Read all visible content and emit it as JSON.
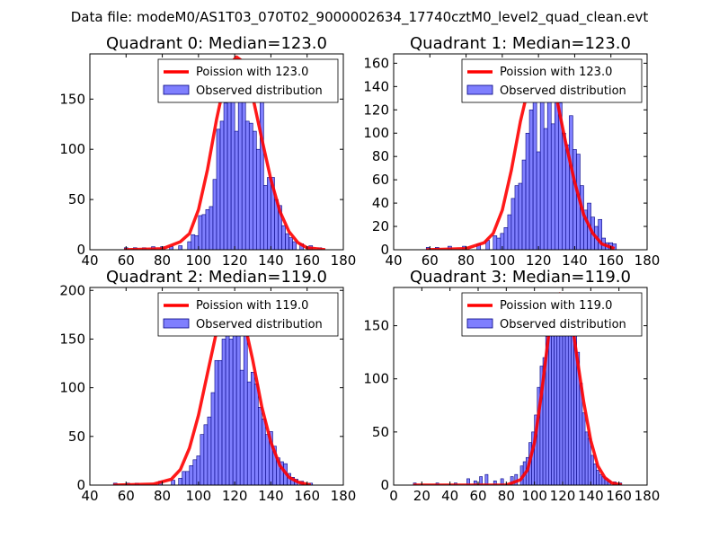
{
  "suptitle": "Data file: modeM0/AS1T03_070T02_9000002634_17740cztM0_level2_quad_clean.evt",
  "colors": {
    "bar_fill": "#7f7ffe",
    "bar_edge": "#000080",
    "curve": "#ff0000",
    "axis": "#000000"
  },
  "chart_data": [
    {
      "type": "bar",
      "title": "Quadrant 0: Median=123.0",
      "median": 123.0,
      "xlim": [
        40,
        180
      ],
      "ylim": [
        0,
        195
      ],
      "xticks": [
        40,
        60,
        80,
        100,
        120,
        140,
        160,
        180
      ],
      "yticks": [
        0,
        50,
        100,
        150
      ],
      "legend": {
        "position": "top-right",
        "curve_label": "Poission with 123.0",
        "bar_label": "Observed distribution"
      },
      "bins": [
        [
          59,
          2
        ],
        [
          64,
          2
        ],
        [
          69,
          2
        ],
        [
          74,
          3
        ],
        [
          79,
          3
        ],
        [
          84,
          3
        ],
        [
          89,
          4
        ],
        [
          94,
          8
        ],
        [
          96,
          15
        ],
        [
          98,
          14
        ],
        [
          100,
          34
        ],
        [
          102,
          35
        ],
        [
          104,
          40
        ],
        [
          106,
          43
        ],
        [
          108,
          70
        ],
        [
          110,
          120
        ],
        [
          112,
          128
        ],
        [
          114,
          146
        ],
        [
          116,
          160
        ],
        [
          118,
          158
        ],
        [
          120,
          118
        ],
        [
          122,
          166
        ],
        [
          124,
          186
        ],
        [
          126,
          128
        ],
        [
          128,
          126
        ],
        [
          130,
          118
        ],
        [
          132,
          100
        ],
        [
          134,
          158
        ],
        [
          136,
          64
        ],
        [
          138,
          72
        ],
        [
          140,
          72
        ],
        [
          142,
          50
        ],
        [
          144,
          44
        ],
        [
          146,
          24
        ],
        [
          148,
          16
        ],
        [
          150,
          12
        ],
        [
          152,
          8
        ],
        [
          156,
          6
        ],
        [
          161,
          4
        ],
        [
          166,
          2
        ]
      ],
      "bin_width": 2,
      "curve": [
        [
          59,
          0
        ],
        [
          80,
          1
        ],
        [
          90,
          8
        ],
        [
          95,
          16
        ],
        [
          100,
          40
        ],
        [
          105,
          80
        ],
        [
          110,
          130
        ],
        [
          115,
          172
        ],
        [
          118,
          186
        ],
        [
          121,
          192
        ],
        [
          124,
          188
        ],
        [
          127,
          176
        ],
        [
          130,
          152
        ],
        [
          135,
          110
        ],
        [
          140,
          70
        ],
        [
          145,
          38
        ],
        [
          150,
          18
        ],
        [
          155,
          7
        ],
        [
          160,
          2
        ],
        [
          170,
          0
        ]
      ]
    },
    {
      "type": "bar",
      "title": "Quadrant 1: Median=123.0",
      "median": 123.0,
      "xlim": [
        40,
        180
      ],
      "ylim": [
        0,
        168
      ],
      "xticks": [
        40,
        60,
        80,
        100,
        120,
        140,
        160,
        180
      ],
      "yticks": [
        0,
        20,
        40,
        60,
        80,
        100,
        120,
        140,
        160
      ],
      "legend": {
        "position": "top-right",
        "curve_label": "Poission with 123.0",
        "bar_label": "Observed distribution"
      },
      "bins": [
        [
          58,
          2
        ],
        [
          63,
          2
        ],
        [
          70,
          3
        ],
        [
          78,
          3
        ],
        [
          86,
          5
        ],
        [
          91,
          8
        ],
        [
          95,
          12
        ],
        [
          97,
          10
        ],
        [
          99,
          14
        ],
        [
          101,
          19
        ],
        [
          103,
          30
        ],
        [
          105,
          44
        ],
        [
          107,
          55
        ],
        [
          109,
          57
        ],
        [
          111,
          77
        ],
        [
          113,
          100
        ],
        [
          115,
          120
        ],
        [
          117,
          128
        ],
        [
          119,
          84
        ],
        [
          121,
          130
        ],
        [
          123,
          104
        ],
        [
          125,
          158
        ],
        [
          127,
          108
        ],
        [
          129,
          146
        ],
        [
          131,
          126
        ],
        [
          133,
          100
        ],
        [
          135,
          90
        ],
        [
          137,
          115
        ],
        [
          139,
          86
        ],
        [
          141,
          82
        ],
        [
          143,
          55
        ],
        [
          145,
          34
        ],
        [
          147,
          40
        ],
        [
          149,
          28
        ],
        [
          151,
          20
        ],
        [
          153,
          26
        ],
        [
          155,
          10
        ],
        [
          157,
          6
        ],
        [
          159,
          6
        ],
        [
          161,
          5
        ]
      ],
      "bin_width": 2,
      "curve": [
        [
          58,
          0
        ],
        [
          80,
          1
        ],
        [
          90,
          6
        ],
        [
          95,
          14
        ],
        [
          100,
          34
        ],
        [
          105,
          68
        ],
        [
          110,
          110
        ],
        [
          115,
          143
        ],
        [
          118,
          156
        ],
        [
          121,
          161
        ],
        [
          124,
          158
        ],
        [
          127,
          150
        ],
        [
          130,
          130
        ],
        [
          135,
          92
        ],
        [
          140,
          58
        ],
        [
          145,
          30
        ],
        [
          150,
          14
        ],
        [
          155,
          5
        ],
        [
          162,
          1
        ]
      ]
    },
    {
      "type": "bar",
      "title": "Quadrant 2: Median=119.0",
      "median": 119.0,
      "xlim": [
        40,
        180
      ],
      "ylim": [
        0,
        203
      ],
      "xticks": [
        40,
        60,
        80,
        100,
        120,
        140,
        160,
        180
      ],
      "yticks": [
        0,
        50,
        100,
        150,
        200
      ],
      "legend": {
        "position": "top-right",
        "curve_label": "Poission with 119.0",
        "bar_label": "Observed distribution"
      },
      "bins": [
        [
          53,
          2
        ],
        [
          60,
          2
        ],
        [
          65,
          2
        ],
        [
          78,
          4
        ],
        [
          85,
          5
        ],
        [
          89,
          7
        ],
        [
          91,
          14
        ],
        [
          93,
          14
        ],
        [
          95,
          20
        ],
        [
          97,
          26
        ],
        [
          99,
          30
        ],
        [
          101,
          52
        ],
        [
          103,
          62
        ],
        [
          105,
          70
        ],
        [
          107,
          95
        ],
        [
          109,
          128
        ],
        [
          111,
          128
        ],
        [
          113,
          150
        ],
        [
          115,
          166
        ],
        [
          117,
          150
        ],
        [
          119,
          168
        ],
        [
          121,
          158
        ],
        [
          123,
          118
        ],
        [
          125,
          180
        ],
        [
          127,
          106
        ],
        [
          129,
          116
        ],
        [
          131,
          104
        ],
        [
          133,
          80
        ],
        [
          135,
          68
        ],
        [
          137,
          52
        ],
        [
          139,
          55
        ],
        [
          141,
          40
        ],
        [
          143,
          28
        ],
        [
          145,
          24
        ],
        [
          147,
          22
        ],
        [
          149,
          12
        ],
        [
          151,
          8
        ],
        [
          153,
          6
        ],
        [
          156,
          4
        ],
        [
          161,
          2
        ]
      ],
      "bin_width": 2,
      "curve": [
        [
          53,
          0
        ],
        [
          75,
          1
        ],
        [
          85,
          6
        ],
        [
          90,
          16
        ],
        [
          95,
          38
        ],
        [
          100,
          72
        ],
        [
          105,
          115
        ],
        [
          110,
          158
        ],
        [
          115,
          186
        ],
        [
          118,
          193
        ],
        [
          120,
          192
        ],
        [
          123,
          182
        ],
        [
          126,
          162
        ],
        [
          130,
          128
        ],
        [
          135,
          80
        ],
        [
          140,
          44
        ],
        [
          145,
          20
        ],
        [
          150,
          8
        ],
        [
          155,
          3
        ],
        [
          162,
          0
        ]
      ]
    },
    {
      "type": "bar",
      "title": "Quadrant 3: Median=119.0",
      "median": 119.0,
      "xlim": [
        0,
        180
      ],
      "ylim": [
        0,
        186
      ],
      "xticks": [
        0,
        20,
        40,
        60,
        80,
        100,
        120,
        140,
        160,
        180
      ],
      "yticks": [
        0,
        50,
        100,
        150
      ],
      "legend": {
        "position": "top-right",
        "curve_label": "Poission with 119.0",
        "bar_label": "Observed distribution"
      },
      "bins": [
        [
          14,
          2
        ],
        [
          30,
          2
        ],
        [
          43,
          2
        ],
        [
          52,
          6
        ],
        [
          57,
          4
        ],
        [
          61,
          8
        ],
        [
          65,
          10
        ],
        [
          71,
          4
        ],
        [
          76,
          6
        ],
        [
          83,
          8
        ],
        [
          86,
          10
        ],
        [
          90,
          18
        ],
        [
          92,
          22
        ],
        [
          94,
          26
        ],
        [
          96,
          40
        ],
        [
          98,
          50
        ],
        [
          100,
          66
        ],
        [
          102,
          92
        ],
        [
          104,
          112
        ],
        [
          106,
          120
        ],
        [
          108,
          140
        ],
        [
          110,
          148
        ],
        [
          112,
          150
        ],
        [
          114,
          156
        ],
        [
          116,
          168
        ],
        [
          118,
          176
        ],
        [
          120,
          166
        ],
        [
          122,
          172
        ],
        [
          124,
          164
        ],
        [
          126,
          150
        ],
        [
          128,
          148
        ],
        [
          130,
          125
        ],
        [
          132,
          96
        ],
        [
          134,
          68
        ],
        [
          136,
          50
        ],
        [
          138,
          44
        ],
        [
          140,
          28
        ],
        [
          142,
          20
        ],
        [
          144,
          14
        ],
        [
          146,
          10
        ],
        [
          148,
          8
        ],
        [
          150,
          6
        ],
        [
          152,
          4
        ],
        [
          156,
          3
        ],
        [
          160,
          2
        ]
      ],
      "bin_width": 2,
      "curve": [
        [
          14,
          0
        ],
        [
          80,
          0
        ],
        [
          90,
          5
        ],
        [
          95,
          14
        ],
        [
          100,
          40
        ],
        [
          105,
          86
        ],
        [
          110,
          140
        ],
        [
          115,
          172
        ],
        [
          118,
          180
        ],
        [
          121,
          178
        ],
        [
          124,
          168
        ],
        [
          127,
          150
        ],
        [
          130,
          122
        ],
        [
          135,
          78
        ],
        [
          140,
          42
        ],
        [
          145,
          18
        ],
        [
          150,
          7
        ],
        [
          155,
          2
        ],
        [
          162,
          0
        ]
      ]
    }
  ]
}
